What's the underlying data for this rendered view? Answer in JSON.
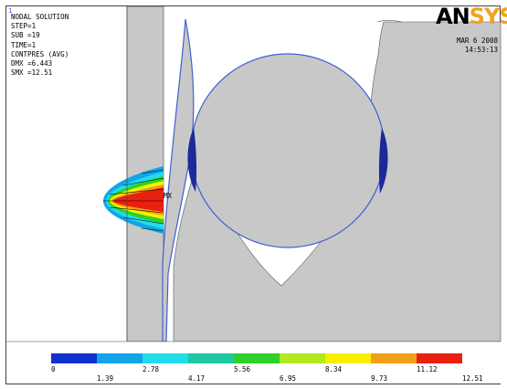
{
  "plot": {
    "index": "1",
    "info_lines": [
      "NODAL SOLUTION",
      "STEP=1",
      "SUB =19",
      "TIME=1",
      "CONTPRES (AVG)",
      "DMX =6.443",
      "SMX =12.51"
    ],
    "logo_main": "AN",
    "logo_accent": "SYS",
    "date": "MAR  6 2008",
    "time": "14:53:13",
    "max_marker": "MX"
  },
  "legend": {
    "colors": [
      "#1030d0",
      "#12a4e8",
      "#22dce8",
      "#1ec8a0",
      "#2ed02a",
      "#b4e81e",
      "#f8f000",
      "#f0a018",
      "#e82010"
    ],
    "labels_upper": [
      "0",
      "2.78",
      "5.56",
      "8.34",
      "11.12"
    ],
    "labels_lower": [
      "1.39",
      "4.17",
      "6.95",
      "9.73",
      "12.51"
    ]
  },
  "theme": {
    "body_gray": "#c8c8c8",
    "edge_blue": "#4060d0",
    "contact_navy": "#1a2a9a"
  }
}
